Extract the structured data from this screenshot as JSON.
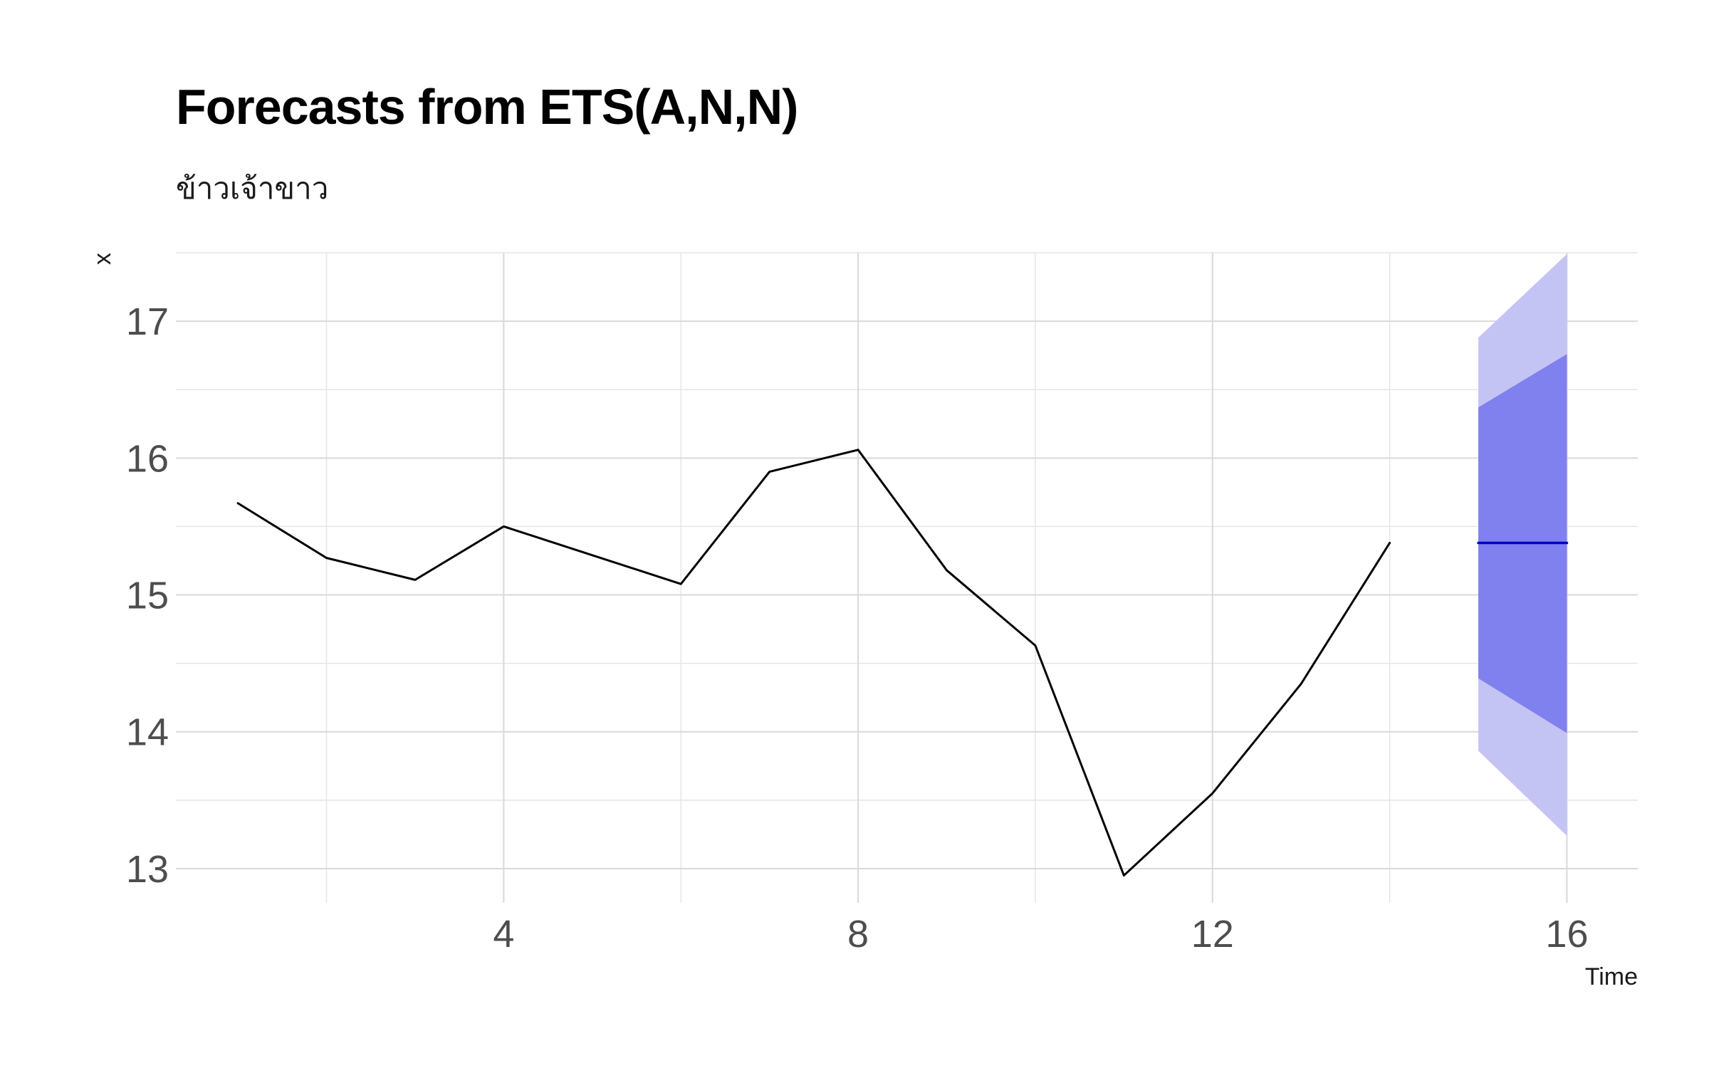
{
  "chart_data": {
    "type": "line",
    "title": "Forecasts from ETS(A,N,N)",
    "subtitle": "ข้าวเจ้าขาว",
    "xlabel": "Time",
    "ylabel": "x",
    "xlim": [
      0.3,
      16.8
    ],
    "ylim": [
      12.75,
      17.5
    ],
    "x_ticks": [
      4,
      8,
      12,
      16
    ],
    "x_tick_labels": [
      "4",
      "8",
      "12",
      "16"
    ],
    "y_ticks": [
      13,
      14,
      15,
      16,
      17
    ],
    "y_tick_labels": [
      "13",
      "14",
      "15",
      "16",
      "17"
    ],
    "grid": true,
    "series": [
      {
        "kind": "observed",
        "color": "#000000",
        "x": [
          1,
          2,
          3,
          4,
          5,
          6,
          7,
          8,
          9,
          10,
          11,
          12,
          13,
          14
        ],
        "values": [
          15.67,
          15.27,
          15.11,
          15.5,
          15.29,
          15.08,
          15.9,
          16.06,
          15.18,
          14.63,
          12.95,
          13.55,
          14.35,
          15.38
        ]
      },
      {
        "kind": "point_forecast",
        "color": "#0000cc",
        "x": [
          15,
          16
        ],
        "values": [
          15.38,
          15.38
        ]
      }
    ],
    "intervals": [
      {
        "level": 95,
        "color": "#c4c4f4",
        "x": [
          15,
          16
        ],
        "lower": [
          13.86,
          13.24
        ],
        "upper": [
          16.88,
          17.49
        ]
      },
      {
        "level": 80,
        "color": "#8080ee",
        "x": [
          15,
          16
        ],
        "lower": [
          14.39,
          13.99
        ],
        "upper": [
          16.37,
          16.76
        ]
      }
    ]
  }
}
